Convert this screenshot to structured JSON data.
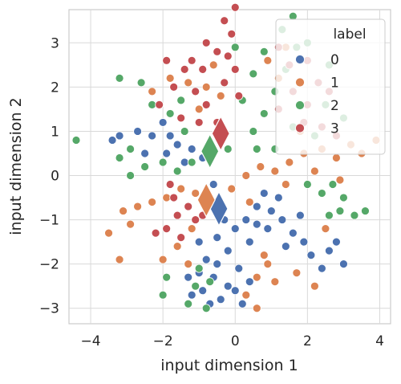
{
  "chart_data": {
    "type": "scatter",
    "xlabel": "input dimension 1",
    "ylabel": "input dimension 2",
    "xlim": [
      -4.6,
      4.3
    ],
    "ylim": [
      -3.35,
      3.75
    ],
    "xticks": [
      -4,
      -2,
      0,
      2,
      4
    ],
    "yticks": [
      -3,
      -2,
      -1,
      0,
      1,
      2,
      3
    ],
    "grid": true,
    "legend": {
      "title": "label",
      "placement": "top-right",
      "entries": [
        "0",
        "1",
        "2",
        "3"
      ]
    },
    "series": [
      {
        "name": "0",
        "color": "#4c72b0",
        "points": [
          [
            -0.3,
            -1.0
          ],
          [
            -0.5,
            -1.4
          ],
          [
            -0.2,
            -1.7
          ],
          [
            -0.8,
            -1.9
          ],
          [
            -0.6,
            -2.3
          ],
          [
            -0.9,
            -2.6
          ],
          [
            -0.4,
            -2.8
          ],
          [
            -1.0,
            -2.2
          ],
          [
            0.0,
            -1.2
          ],
          [
            0.3,
            -1.0
          ],
          [
            0.6,
            -1.1
          ],
          [
            0.9,
            -1.2
          ],
          [
            1.3,
            -1.0
          ],
          [
            1.6,
            -1.3
          ],
          [
            1.9,
            -1.5
          ],
          [
            0.4,
            -1.5
          ],
          [
            0.1,
            -2.1
          ],
          [
            -0.2,
            -2.5
          ],
          [
            -0.7,
            -2.9
          ],
          [
            -1.2,
            -2.7
          ],
          [
            0.6,
            -0.7
          ],
          [
            1.0,
            -0.8
          ],
          [
            1.4,
            -1.6
          ],
          [
            2.1,
            -1.8
          ],
          [
            2.6,
            -1.7
          ],
          [
            1.2,
            -0.5
          ],
          [
            0.8,
            -0.4
          ],
          [
            -1.0,
            -1.5
          ],
          [
            -1.3,
            -2.3
          ],
          [
            0.2,
            -2.9
          ],
          [
            -1.9,
            0.5
          ],
          [
            -2.3,
            0.9
          ],
          [
            -2.7,
            1.0
          ],
          [
            -3.2,
            0.9
          ],
          [
            -3.4,
            0.8
          ],
          [
            -1.6,
            0.7
          ],
          [
            -2.0,
            1.2
          ],
          [
            -1.2,
            0.6
          ],
          [
            -2.5,
            0.5
          ],
          [
            -1.8,
            0.9
          ],
          [
            2.8,
            -1.5
          ],
          [
            3.0,
            -2.0
          ],
          [
            2.4,
            -2.1
          ],
          [
            0.0,
            -2.6
          ],
          [
            -0.5,
            -2.0
          ],
          [
            1.8,
            -0.9
          ],
          [
            -1.4,
            0.3
          ],
          [
            -0.9,
            0.4
          ],
          [
            -0.6,
            -0.2
          ],
          [
            0.4,
            -2.4
          ]
        ]
      },
      {
        "name": "1",
        "color": "#dd8452",
        "points": [
          [
            -0.8,
            -0.6
          ],
          [
            -1.1,
            -0.4
          ],
          [
            -1.5,
            -0.3
          ],
          [
            -1.9,
            -0.5
          ],
          [
            -2.3,
            -0.6
          ],
          [
            -2.7,
            -0.7
          ],
          [
            -3.1,
            -0.8
          ],
          [
            -3.5,
            -1.3
          ],
          [
            -2.9,
            -1.1
          ],
          [
            -1.2,
            -1.2
          ],
          [
            -1.6,
            -1.6
          ],
          [
            -2.0,
            -1.9
          ],
          [
            -3.2,
            -1.9
          ],
          [
            0.9,
            -2.0
          ],
          [
            0.6,
            -2.3
          ],
          [
            0.3,
            -2.7
          ],
          [
            0.6,
            -3.0
          ],
          [
            1.1,
            -2.4
          ],
          [
            1.7,
            -2.2
          ],
          [
            2.2,
            -2.5
          ],
          [
            0.8,
            -1.8
          ],
          [
            0.3,
            0.0
          ],
          [
            0.7,
            0.2
          ],
          [
            1.1,
            0.1
          ],
          [
            1.5,
            0.3
          ],
          [
            1.9,
            0.5
          ],
          [
            2.4,
            0.6
          ],
          [
            2.8,
            0.4
          ],
          [
            3.2,
            0.7
          ],
          [
            3.5,
            0.5
          ],
          [
            3.9,
            0.8
          ],
          [
            1.4,
            -0.2
          ],
          [
            2.2,
            0.1
          ],
          [
            2.9,
            -0.1
          ],
          [
            -0.4,
            1.8
          ],
          [
            -0.8,
            2.0
          ],
          [
            -1.3,
            2.1
          ],
          [
            -1.8,
            2.2
          ],
          [
            -2.3,
            1.9
          ],
          [
            -1.0,
            1.5
          ],
          [
            -1.5,
            1.7
          ],
          [
            -0.6,
            2.5
          ],
          [
            0.9,
            2.6
          ],
          [
            1.4,
            2.9
          ],
          [
            1.2,
            2.2
          ],
          [
            0.4,
            -0.6
          ],
          [
            -0.1,
            -0.3
          ],
          [
            -1.3,
            -2.0
          ],
          [
            2.5,
            -1.2
          ],
          [
            1.8,
            1.0
          ]
        ]
      },
      {
        "name": "2",
        "color": "#55a868",
        "points": [
          [
            -0.8,
            0.6
          ],
          [
            -1.2,
            0.3
          ],
          [
            -1.6,
            0.1
          ],
          [
            -2.0,
            0.3
          ],
          [
            -2.5,
            0.2
          ],
          [
            -2.9,
            0.0
          ],
          [
            -3.2,
            0.4
          ],
          [
            -4.4,
            0.8
          ],
          [
            -1.8,
            1.4
          ],
          [
            -2.3,
            1.6
          ],
          [
            -1.4,
            1.0
          ],
          [
            -0.7,
            -2.4
          ],
          [
            -1.1,
            -2.5
          ],
          [
            -1.3,
            -2.9
          ],
          [
            -0.8,
            -3.0
          ],
          [
            -1.9,
            -2.3
          ],
          [
            -2.0,
            -2.7
          ],
          [
            0.5,
            1.0
          ],
          [
            0.8,
            1.4
          ],
          [
            1.1,
            1.9
          ],
          [
            1.4,
            2.4
          ],
          [
            1.7,
            2.9
          ],
          [
            0.2,
            1.7
          ],
          [
            0.5,
            2.3
          ],
          [
            0.8,
            2.8
          ],
          [
            0.0,
            2.9
          ],
          [
            1.3,
            3.3
          ],
          [
            2.0,
            3.0
          ],
          [
            2.6,
            2.5
          ],
          [
            2.5,
            1.6
          ],
          [
            2.2,
            0.9
          ],
          [
            2.0,
            -0.2
          ],
          [
            2.4,
            -0.4
          ],
          [
            2.7,
            -0.2
          ],
          [
            3.0,
            -0.5
          ],
          [
            3.3,
            -0.9
          ],
          [
            3.6,
            -0.8
          ],
          [
            2.6,
            -0.9
          ],
          [
            1.6,
            3.6
          ],
          [
            -3.2,
            2.2
          ],
          [
            -2.6,
            2.1
          ],
          [
            -0.2,
            0.6
          ],
          [
            1.6,
            1.1
          ],
          [
            3.0,
            1.3
          ],
          [
            0.6,
            0.6
          ],
          [
            -2.9,
            0.6
          ],
          [
            -1.0,
            -2.1
          ],
          [
            2.9,
            -0.8
          ],
          [
            -1.5,
            1.7
          ],
          [
            1.1,
            0.6
          ]
        ]
      },
      {
        "name": "3",
        "color": "#c44e52",
        "points": [
          [
            -0.5,
            1.2
          ],
          [
            -0.8,
            1.6
          ],
          [
            -1.1,
            1.9
          ],
          [
            -1.4,
            2.4
          ],
          [
            -0.9,
            2.4
          ],
          [
            -0.5,
            2.8
          ],
          [
            -0.1,
            3.2
          ],
          [
            0.0,
            2.4
          ],
          [
            -0.3,
            2.1
          ],
          [
            -1.7,
            2.0
          ],
          [
            -1.2,
            2.6
          ],
          [
            -0.8,
            3.0
          ],
          [
            -0.3,
            3.5
          ],
          [
            -1.9,
            2.6
          ],
          [
            -1.5,
            1.3
          ],
          [
            0.0,
            3.8
          ],
          [
            1.2,
            1.5
          ],
          [
            1.6,
            1.9
          ],
          [
            2.0,
            1.6
          ],
          [
            2.3,
            2.1
          ],
          [
            2.6,
            1.9
          ],
          [
            1.9,
            1.2
          ],
          [
            2.4,
            1.1
          ],
          [
            2.8,
            0.9
          ],
          [
            1.5,
            2.5
          ],
          [
            -1.3,
            -0.7
          ],
          [
            -1.6,
            -0.9
          ],
          [
            -1.9,
            -1.2
          ],
          [
            -1.7,
            -0.5
          ],
          [
            -1.1,
            -1.0
          ],
          [
            -2.2,
            -1.3
          ],
          [
            -0.9,
            -0.9
          ],
          [
            -1.5,
            -1.4
          ],
          [
            -0.2,
            2.7
          ],
          [
            0.1,
            1.8
          ],
          [
            -1.0,
            1.2
          ],
          [
            -2.1,
            1.6
          ],
          [
            2.0,
            2.6
          ],
          [
            1.2,
            2.9
          ],
          [
            -1.8,
            -0.2
          ]
        ]
      }
    ],
    "class_means": [
      {
        "label": "0",
        "color": "#4c72b0",
        "x": -0.45,
        "y": -0.75
      },
      {
        "label": "1",
        "color": "#dd8452",
        "x": -0.8,
        "y": -0.55
      },
      {
        "label": "2",
        "color": "#55a868",
        "x": -0.7,
        "y": 0.55
      },
      {
        "label": "3",
        "color": "#c44e52",
        "x": -0.4,
        "y": 0.95
      }
    ]
  }
}
